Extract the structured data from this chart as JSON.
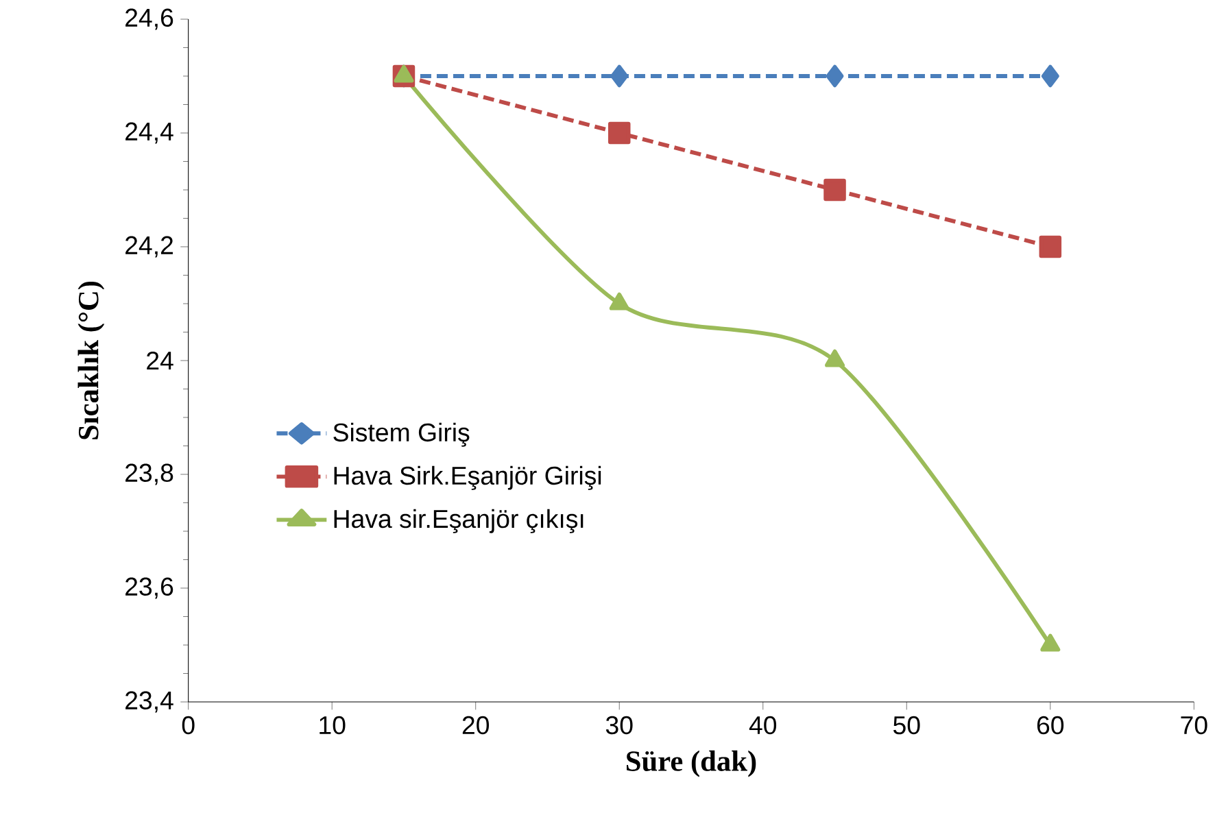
{
  "chart_data": {
    "type": "line",
    "xlabel": "Süre (dak)",
    "ylabel": "Sıcaklık (°C)",
    "x": [
      15,
      30,
      45,
      60
    ],
    "series": [
      {
        "name": "Sistem Giriş",
        "color": "#4a7ebb",
        "values": [
          24.5,
          24.5,
          24.5,
          24.5
        ],
        "marker": "diamond",
        "line_style": "dashed"
      },
      {
        "name": "Hava Sirk.Eşanjör Girişi",
        "color": "#be4b48",
        "values": [
          24.5,
          24.4,
          24.3,
          24.2
        ],
        "marker": "square",
        "line_style": "dashed"
      },
      {
        "name": "Hava sir.Eşanjör çıkışı",
        "color": "#9bbb59",
        "values": [
          24.5,
          24.1,
          24.0,
          23.5
        ],
        "marker": "triangle",
        "line_style": "solid"
      }
    ],
    "xlim": [
      0,
      70
    ],
    "xticks": [
      0,
      10,
      20,
      30,
      40,
      50,
      60,
      70
    ],
    "ylim": [
      23.4,
      24.6
    ],
    "yticks": [
      {
        "value": 23.4,
        "label": "23,4"
      },
      {
        "value": 23.6,
        "label": "23,6"
      },
      {
        "value": 23.8,
        "label": "23,8"
      },
      24,
      {
        "value": 24.2,
        "label": "24,2"
      },
      {
        "value": 24.4,
        "label": "24,4"
      },
      {
        "value": 24.6,
        "label": "24,6"
      }
    ],
    "grid": false,
    "legend": "left"
  }
}
